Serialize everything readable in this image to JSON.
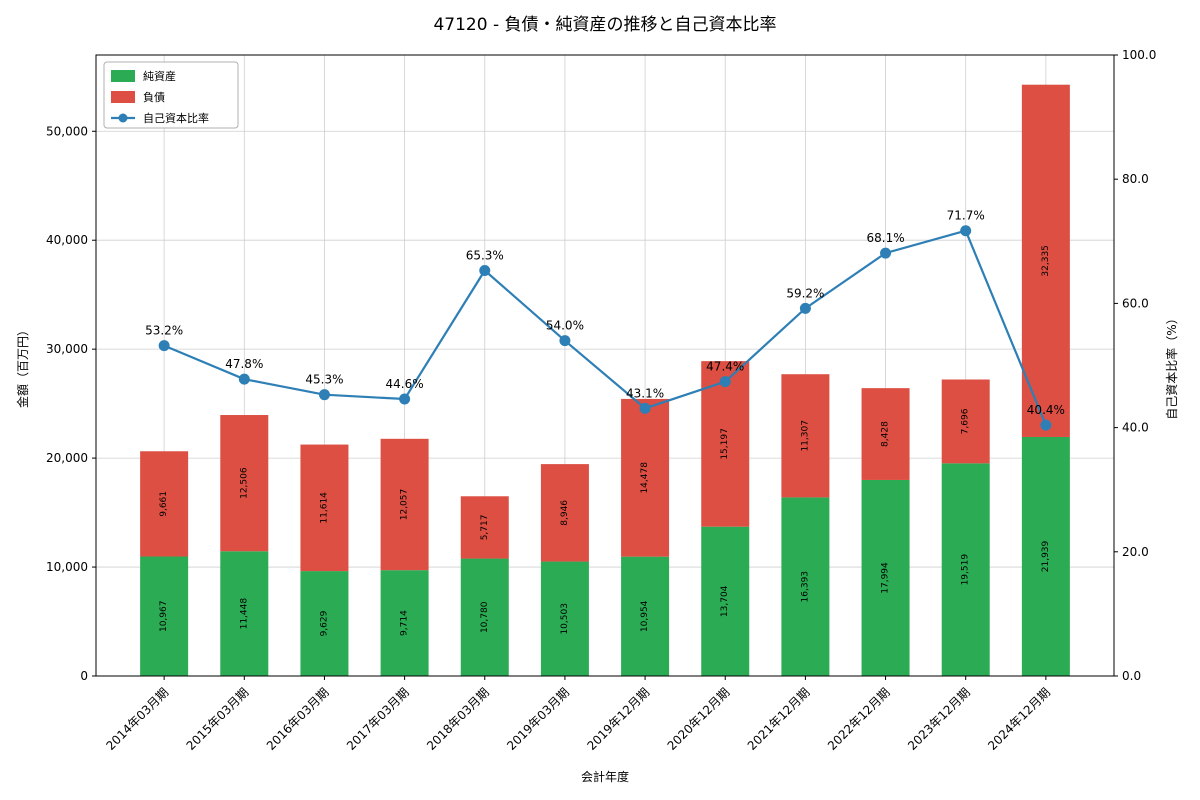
{
  "chart_data": {
    "type": "stacked-bar+line",
    "title": "47120 - 負債・純資産の推移と自己資本比率",
    "xlabel": "会計年度",
    "ylabel_left": "金額（百万円）",
    "ylabel_right": "自己資本比率（%）",
    "categories": [
      "2014年03月期",
      "2015年03月期",
      "2016年03月期",
      "2017年03月期",
      "2018年03月期",
      "2019年03月期",
      "2019年12月期",
      "2020年12月期",
      "2021年12月期",
      "2022年12月期",
      "2023年12月期",
      "2024年12月期"
    ],
    "series": [
      {
        "name": "純資産",
        "type": "bar",
        "color": "#2bab54",
        "values": [
          10967,
          11448,
          9629,
          9714,
          10780,
          10503,
          10954,
          13704,
          16393,
          17994,
          19519,
          21939
        ]
      },
      {
        "name": "負債",
        "type": "bar",
        "color": "#dd4f43",
        "values": [
          9661,
          12506,
          11614,
          12057,
          5717,
          8946,
          14478,
          15197,
          11307,
          8428,
          7696,
          32335
        ]
      },
      {
        "name": "自己資本比率",
        "type": "line",
        "color": "#2d7fb5",
        "unit": "%",
        "values": [
          53.2,
          47.8,
          45.3,
          44.6,
          65.3,
          54.0,
          43.1,
          47.4,
          59.2,
          68.1,
          71.7,
          40.4
        ]
      }
    ],
    "ylim_left": [
      0,
      57000
    ],
    "ylim_right": [
      0,
      100
    ],
    "yticks_left": [
      0,
      10000,
      20000,
      30000,
      40000,
      50000
    ],
    "yticks_right": [
      0,
      20,
      40,
      60,
      80,
      100
    ],
    "grid": true,
    "legend_position": "upper-left"
  }
}
